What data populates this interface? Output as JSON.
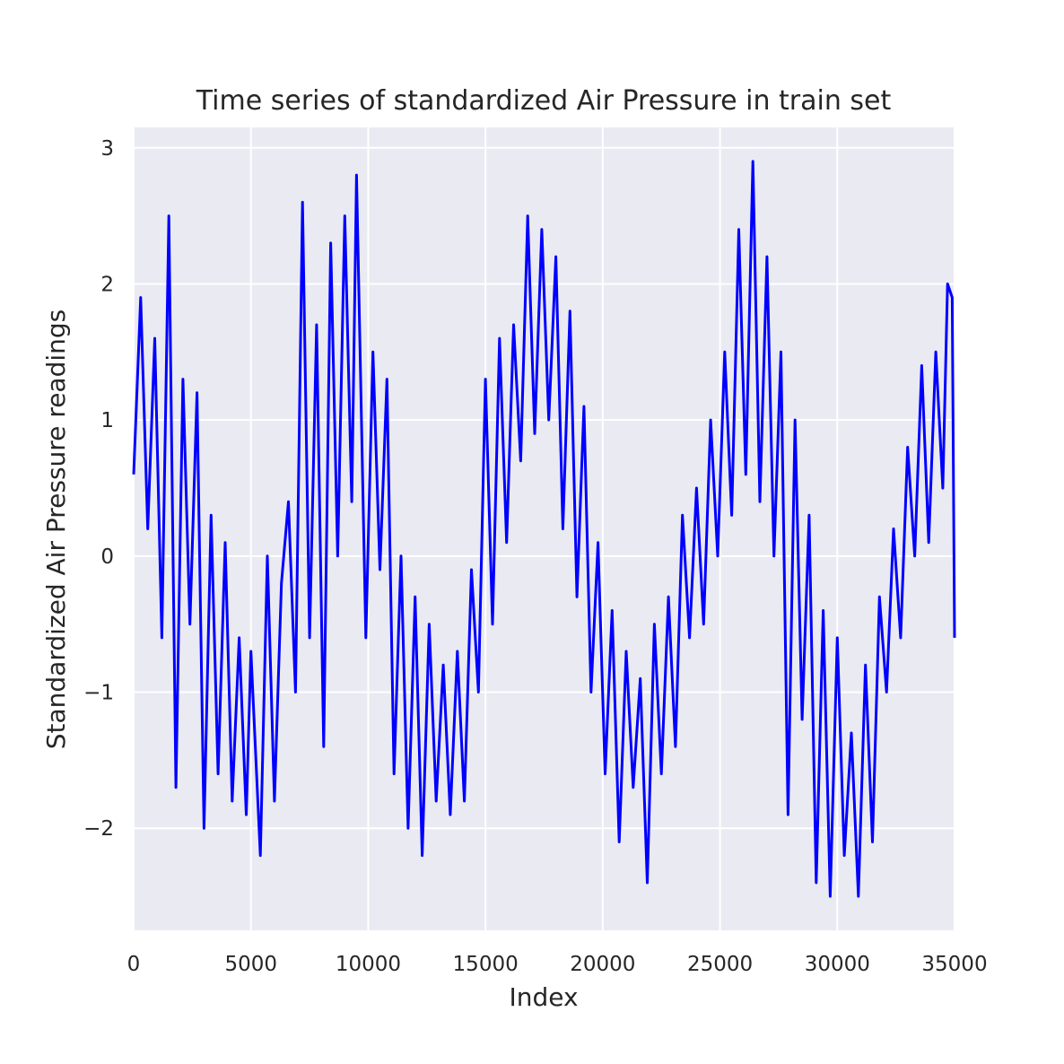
{
  "chart_data": {
    "type": "line",
    "title": "Time series of standardized Air Pressure in train set",
    "xlabel": "Index",
    "ylabel": "Standardized Air Pressure readings",
    "xlim": [
      0,
      35000
    ],
    "ylim": [
      -2.75,
      3.15
    ],
    "xticks": [
      0,
      5000,
      10000,
      15000,
      20000,
      25000,
      30000,
      35000
    ],
    "xtick_labels": [
      "0",
      "5000",
      "10000",
      "15000",
      "20000",
      "25000",
      "30000",
      "35000"
    ],
    "yticks": [
      -2,
      -1,
      0,
      1,
      2,
      3
    ],
    "ytick_labels": [
      "−2",
      "−1",
      "0",
      "1",
      "2",
      "3"
    ],
    "grid": true,
    "colors": {
      "line": "#0000ff",
      "plot_bg": "#eaeaf2",
      "grid": "#ffffff"
    },
    "series": [
      {
        "x": [
          0,
          300,
          600,
          900,
          1200,
          1500,
          1800,
          2100,
          2400,
          2700,
          3000,
          3300,
          3600,
          3900,
          4200,
          4500,
          4800,
          5000,
          5400,
          5700,
          6000,
          6300,
          6600,
          6900,
          7200,
          7500,
          7800,
          8100,
          8400,
          8700,
          9000,
          9300,
          9500,
          9900,
          10200,
          10500,
          10800,
          11100,
          11400,
          11700,
          12000,
          12300,
          12600,
          12900,
          13200,
          13500,
          13800,
          14100,
          14400,
          14700,
          15000,
          15300,
          15600,
          15900,
          16200,
          16500,
          16800,
          17100,
          17400,
          17700,
          18000,
          18300,
          18600,
          18900,
          19200,
          19500,
          19800,
          20100,
          20400,
          20700,
          21000,
          21300,
          21600,
          21900,
          22200,
          22500,
          22800,
          23100,
          23400,
          23700,
          24000,
          24300,
          24600,
          24900,
          25200,
          25500,
          25800,
          26100,
          26400,
          26700,
          27000,
          27300,
          27600,
          27900,
          28200,
          28500,
          28800,
          29100,
          29400,
          29700,
          30000,
          30300,
          30600,
          30900,
          31200,
          31500,
          31800,
          32100,
          32400,
          32700,
          33000,
          33300,
          33600,
          33900,
          34200,
          34500,
          34700,
          34900,
          35000
        ],
        "values": [
          0.6,
          1.9,
          0.2,
          1.6,
          -0.6,
          2.5,
          -1.7,
          1.3,
          -0.5,
          1.2,
          -2.0,
          0.3,
          -1.6,
          0.1,
          -1.8,
          -0.6,
          -1.9,
          -0.7,
          -2.2,
          0.0,
          -1.8,
          -0.2,
          0.4,
          -1.0,
          2.6,
          -0.6,
          1.7,
          -1.4,
          2.3,
          0.0,
          2.5,
          0.4,
          2.8,
          -0.6,
          1.5,
          -0.1,
          1.3,
          -1.6,
          0.0,
          -2.0,
          -0.3,
          -2.2,
          -0.5,
          -1.8,
          -0.8,
          -1.9,
          -0.7,
          -1.8,
          -0.1,
          -1.0,
          1.3,
          -0.5,
          1.6,
          0.1,
          1.7,
          0.7,
          2.5,
          0.9,
          2.4,
          1.0,
          2.2,
          0.2,
          1.8,
          -0.3,
          1.1,
          -1.0,
          0.1,
          -1.6,
          -0.4,
          -2.1,
          -0.7,
          -1.7,
          -0.9,
          -2.4,
          -0.5,
          -1.6,
          -0.3,
          -1.4,
          0.3,
          -0.6,
          0.5,
          -0.5,
          1.0,
          0.0,
          1.5,
          0.3,
          2.4,
          0.6,
          2.9,
          0.4,
          2.2,
          0.0,
          1.5,
          -1.9,
          1.0,
          -1.2,
          0.3,
          -2.4,
          -0.4,
          -2.5,
          -0.6,
          -2.2,
          -1.3,
          -2.5,
          -0.8,
          -2.1,
          -0.3,
          -1.0,
          0.2,
          -0.6,
          0.8,
          0.0,
          1.4,
          0.1,
          1.5,
          0.5,
          2.0,
          1.9,
          -0.6
        ]
      }
    ]
  }
}
